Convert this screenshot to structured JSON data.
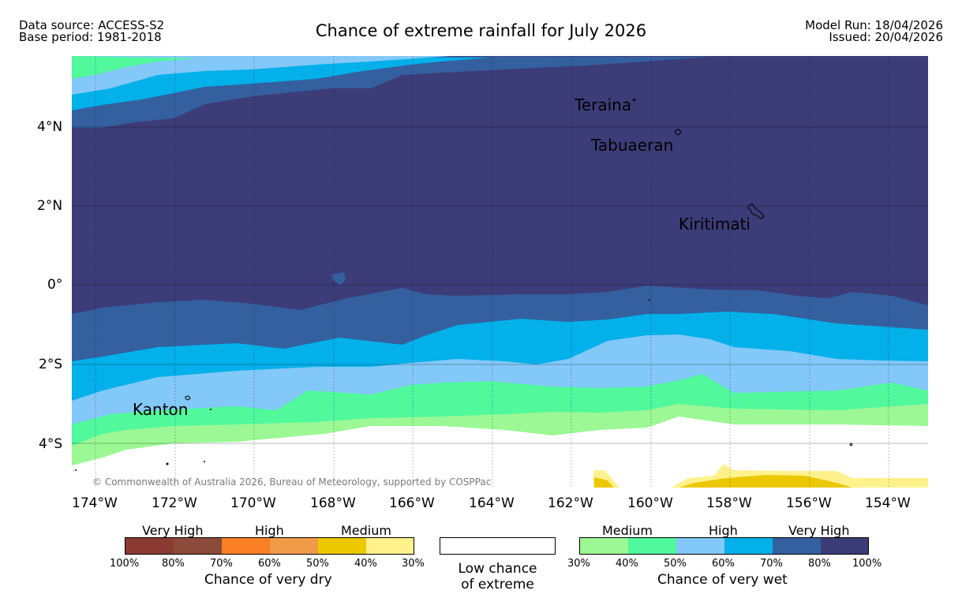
{
  "header": {
    "data_source": "Data source: ACCESS-S2",
    "base_period": "Base period: 1981-2018",
    "title": "Chance of extreme rainfall for July 2026",
    "model_run": "Model Run: 18/04/2026",
    "issued": "Issued: 20/04/2026"
  },
  "map": {
    "lat_labels": [
      "4°N",
      "2°N",
      "0°",
      "2°S",
      "4°S"
    ],
    "lon_labels": [
      "174°W",
      "172°W",
      "170°W",
      "168°W",
      "166°W",
      "164°W",
      "162°W",
      "160°W",
      "158°W",
      "156°W",
      "154°W"
    ],
    "places": [
      "Teraina",
      "Tabuaeran",
      "Kiritimati",
      "Kanton"
    ],
    "copyright": "© Commonwealth of Australia 2026, Bureau of Meteorology, supported by COSPPac"
  },
  "legend": {
    "dry": {
      "categories": [
        "Very High",
        "High",
        "Medium"
      ],
      "percent_labels": [
        "100%",
        "80%",
        "70%",
        "60%",
        "50%",
        "40%",
        "30%"
      ],
      "colors": [
        "#8b3a33",
        "#8b4a3a",
        "#fb7f24",
        "#ef9b4a",
        "#ecc800",
        "#fff28c"
      ],
      "caption": "Chance of very dry"
    },
    "low": {
      "line1": "Low chance",
      "line2": "of extreme",
      "color": "#ffffff"
    },
    "wet": {
      "categories": [
        "Medium",
        "High",
        "Very High"
      ],
      "percent_labels": [
        "30%",
        "40%",
        "50%",
        "60%",
        "70%",
        "80%",
        "100%"
      ],
      "colors": [
        "#9bf895",
        "#52f89c",
        "#82c8f8",
        "#02b0ea",
        "#34609f",
        "#3c3c78"
      ],
      "caption": "Chance of very wet"
    }
  }
}
